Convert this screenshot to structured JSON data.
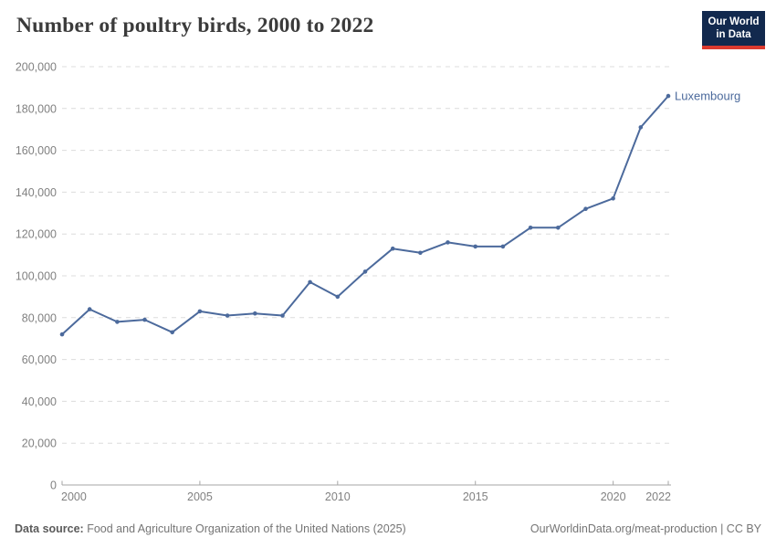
{
  "header": {
    "title": "Number of poultry birds, 2000 to 2022",
    "logo": {
      "line1": "Our World",
      "line2": "in Data"
    }
  },
  "chart_data": {
    "type": "line",
    "title": "Number of poultry birds, 2000 to 2022",
    "x": [
      2000,
      2001,
      2002,
      2003,
      2004,
      2005,
      2006,
      2007,
      2008,
      2009,
      2010,
      2011,
      2012,
      2013,
      2014,
      2015,
      2016,
      2017,
      2018,
      2019,
      2020,
      2021,
      2022
    ],
    "series": [
      {
        "name": "Luxembourg",
        "color": "#4c6a9c",
        "values": [
          72000,
          84000,
          78000,
          79000,
          73000,
          83000,
          81000,
          82000,
          81000,
          97000,
          90000,
          102000,
          113000,
          111000,
          116000,
          114000,
          114000,
          123000,
          123000,
          132000,
          137000,
          171000,
          186000
        ]
      }
    ],
    "xlabel": "",
    "ylabel": "",
    "ylim": [
      0,
      200000
    ],
    "ytick_interval": 20000,
    "xticks": [
      2000,
      2005,
      2010,
      2015,
      2020,
      2022
    ],
    "grid": "horizontal-dashed",
    "legend_position": "end-of-line-label"
  },
  "colors": {
    "line": "#4c6a9c",
    "gridline": "#dcdcdc",
    "axis": "#a6a6a6",
    "tick_text": "#818181",
    "title_text": "#3b3b3b",
    "logo_bg": "#12294e",
    "logo_red": "#dc3a2f"
  },
  "footer": {
    "source_label": "Data source:",
    "source_text": " Food and Agriculture Organization of the United Nations (2025)",
    "right_text": "OurWorldinData.org/meat-production | CC BY"
  }
}
